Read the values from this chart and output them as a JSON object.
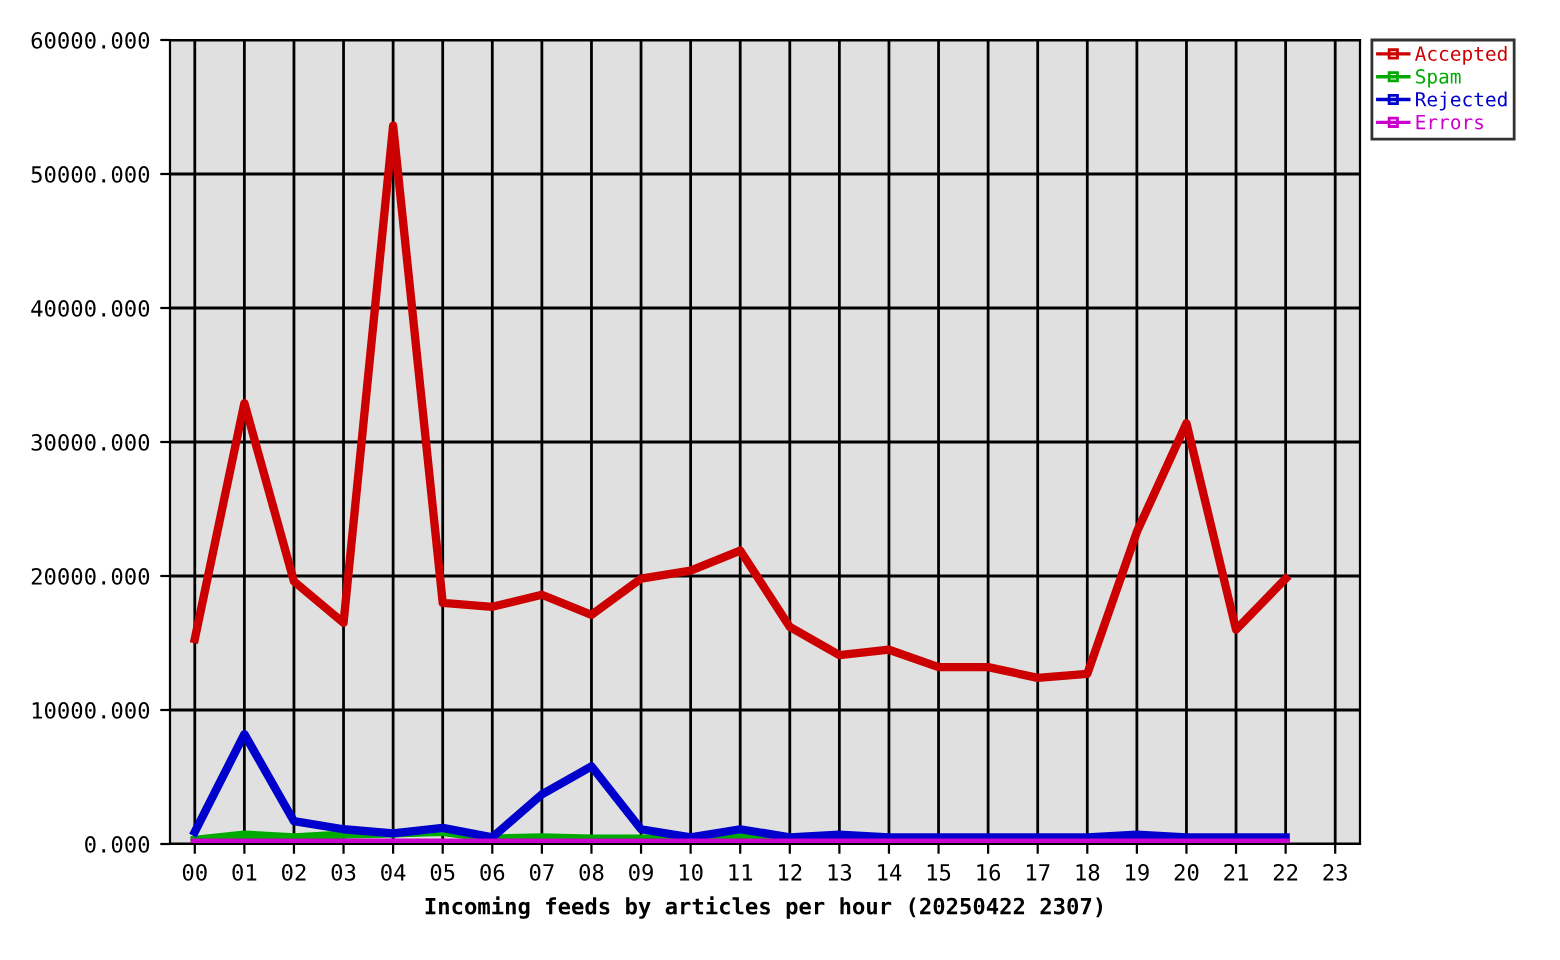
{
  "chart_data": {
    "type": "line",
    "xlabel": "Incoming feeds by articles per hour (20250422 2307)",
    "categories": [
      "00",
      "01",
      "02",
      "03",
      "04",
      "05",
      "06",
      "07",
      "08",
      "09",
      "10",
      "11",
      "12",
      "13",
      "14",
      "15",
      "16",
      "17",
      "18",
      "19",
      "20",
      "21",
      "22",
      "23"
    ],
    "series": [
      {
        "name": "Accepted",
        "color": "#cc0000",
        "values": [
          15300,
          32900,
          19600,
          16500,
          53600,
          18000,
          17700,
          18600,
          17100,
          19800,
          20400,
          21900,
          16200,
          14100,
          14500,
          13200,
          13200,
          12400,
          12700,
          23300,
          31400,
          16000,
          19800,
          null
        ]
      },
      {
        "name": "Spam",
        "color": "#00aa00",
        "values": [
          300,
          700,
          500,
          700,
          800,
          900,
          400,
          500,
          400,
          400,
          400,
          700,
          300,
          null,
          null,
          null,
          null,
          null,
          null,
          null,
          null,
          null,
          null,
          null
        ]
      },
      {
        "name": "Rejected",
        "color": "#0000cc",
        "values": [
          900,
          8200,
          1700,
          1100,
          800,
          1200,
          500,
          3700,
          5800,
          1100,
          500,
          1100,
          500,
          700,
          500,
          500,
          500,
          500,
          500,
          700,
          500,
          500,
          500,
          null
        ]
      },
      {
        "name": "Errors",
        "color": "#cc00cc",
        "values": [
          100,
          100,
          100,
          100,
          100,
          100,
          100,
          100,
          100,
          100,
          100,
          100,
          100,
          100,
          100,
          100,
          100,
          100,
          100,
          100,
          100,
          100,
          100,
          null
        ]
      }
    ],
    "ylim": [
      0,
      60000
    ],
    "yticks": [
      {
        "value": 0,
        "label": "0.000"
      },
      {
        "value": 10000,
        "label": "10000.000"
      },
      {
        "value": 20000,
        "label": "20000.000"
      },
      {
        "value": 30000,
        "label": "30000.000"
      },
      {
        "value": 40000,
        "label": "40000.000"
      },
      {
        "value": 50000,
        "label": "50000.000"
      },
      {
        "value": 60000,
        "label": "60000.000"
      }
    ],
    "grid": true,
    "legend": "top right",
    "marker": "none",
    "line_style": "solid"
  }
}
